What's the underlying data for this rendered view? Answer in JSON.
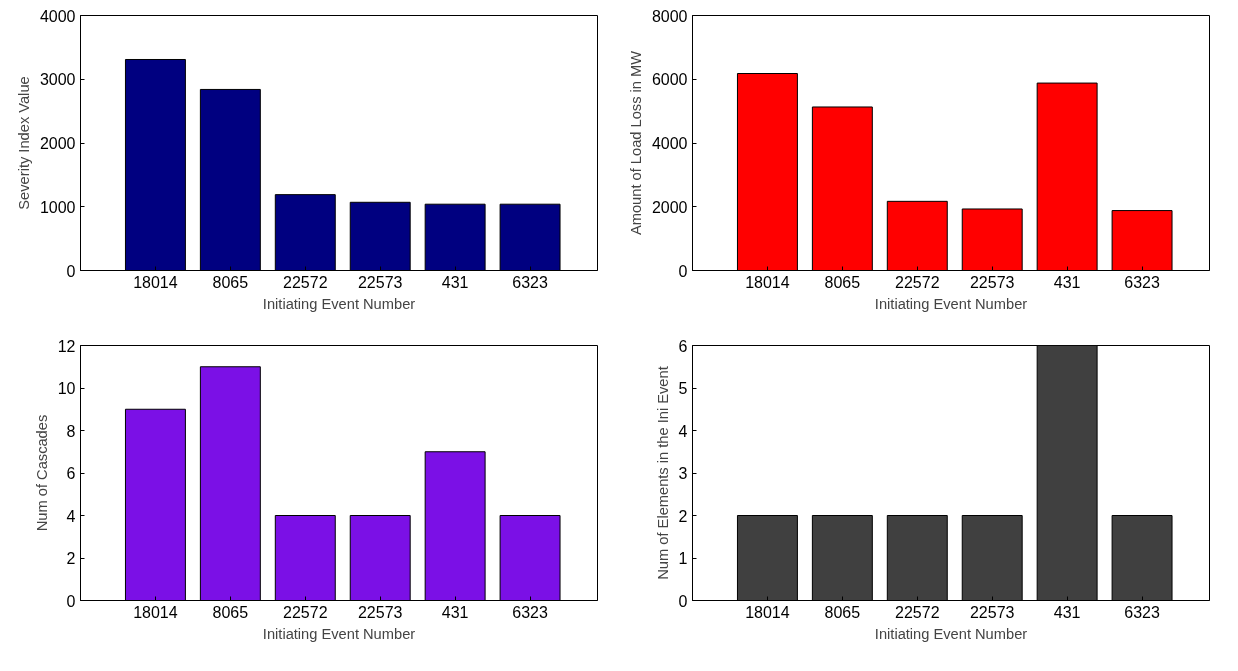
{
  "chart_data": [
    {
      "type": "bar",
      "xlabel": "Initiating Event Number",
      "ylabel": "Severity Index Value",
      "categories": [
        "18014",
        "8065",
        "22572",
        "22573",
        "431",
        "6323"
      ],
      "series": [
        {
          "color": "#000080",
          "values": [
            3310,
            2840,
            1190,
            1070,
            1040,
            1040
          ]
        }
      ],
      "ylim": [
        0,
        4000
      ],
      "yticks": [
        0,
        1000,
        2000,
        3000,
        4000
      ],
      "grid": false
    },
    {
      "type": "bar",
      "xlabel": "Initiating Event Number",
      "ylabel": "Amount of Load Loss in MW",
      "categories": [
        "18014",
        "8065",
        "22572",
        "22573",
        "431",
        "6323"
      ],
      "series": [
        {
          "color": "#ff0000",
          "values": [
            6180,
            5130,
            2170,
            1930,
            5880,
            1880
          ]
        }
      ],
      "ylim": [
        0,
        8000
      ],
      "yticks": [
        0,
        2000,
        4000,
        6000,
        8000
      ],
      "grid": false
    },
    {
      "type": "bar",
      "xlabel": "Initiating Event Number",
      "ylabel": "Num of Cascades",
      "categories": [
        "18014",
        "8065",
        "22572",
        "22573",
        "431",
        "6323"
      ],
      "series": [
        {
          "color": "#7b10e6",
          "values": [
            9,
            11,
            4,
            4,
            7,
            4
          ]
        }
      ],
      "ylim": [
        0,
        12
      ],
      "yticks": [
        0,
        2,
        4,
        6,
        8,
        10,
        12
      ],
      "grid": false
    },
    {
      "type": "bar",
      "xlabel": "Initiating Event Number",
      "ylabel": "Num of Elements in the Ini Event",
      "categories": [
        "18014",
        "8065",
        "22572",
        "22573",
        "431",
        "6323"
      ],
      "series": [
        {
          "color": "#404040",
          "values": [
            2,
            2,
            2,
            2,
            6,
            2
          ]
        }
      ],
      "ylim": [
        0,
        6
      ],
      "yticks": [
        0,
        1,
        2,
        3,
        4,
        5,
        6
      ],
      "grid": false
    }
  ]
}
